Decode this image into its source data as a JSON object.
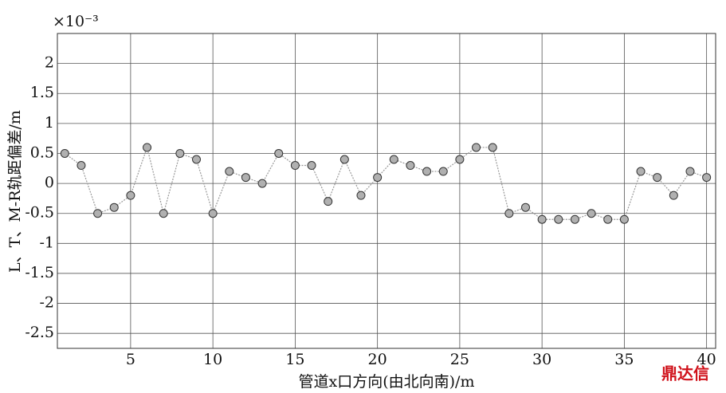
{
  "chart_data": {
    "type": "line",
    "exponent_label": "×10⁻³",
    "y_label": "L、T、M-R轨距偏差/m",
    "x_label": "管道x口方向(由北向南)/m",
    "watermark": "鼎达信",
    "x": [
      1,
      2,
      3,
      4,
      5,
      6,
      7,
      8,
      9,
      10,
      11,
      12,
      13,
      14,
      15,
      16,
      17,
      18,
      19,
      20,
      21,
      22,
      23,
      24,
      25,
      26,
      27,
      28,
      29,
      30,
      31,
      32,
      33,
      34,
      35,
      36,
      37,
      38,
      39,
      40
    ],
    "series": [
      {
        "color": "#b0b0b0",
        "line_color": "#999999",
        "values": [
          0.5,
          0.3,
          -0.5,
          -0.4,
          -0.2,
          0.6,
          -0.5,
          0.5,
          0.4,
          -0.5,
          0.2,
          0.1,
          0,
          0.5,
          0.3,
          0.3,
          -0.3,
          0.4,
          -0.2,
          0.1,
          0.4,
          0.3,
          0.2,
          0.2,
          0.4,
          0.6,
          0.6,
          -0.5,
          -0.4,
          -0.6,
          -0.6,
          -0.6,
          -0.5,
          -0.6,
          -0.6,
          0.2,
          0.1,
          -0.2,
          0.2,
          0.1
        ]
      }
    ],
    "xlim": [
      0.55,
      40.55
    ],
    "xticks": [
      5,
      10,
      15,
      20,
      25,
      30,
      35,
      40
    ],
    "ylim": [
      -2.75,
      2.5
    ],
    "yticks": [
      -2.5,
      -2,
      -1.5,
      -1,
      -0.5,
      0,
      0.5,
      1,
      1.5,
      2
    ],
    "grid": true
  }
}
